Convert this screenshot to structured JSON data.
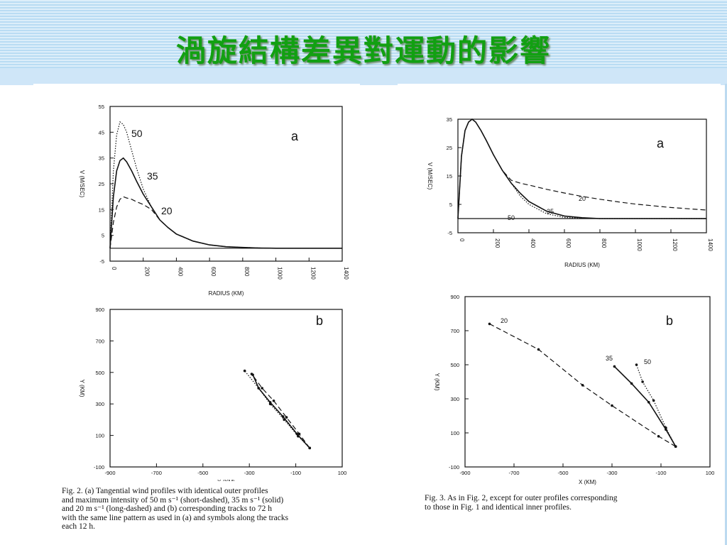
{
  "slide": {
    "title": "渦旋結構差異對運動的影響",
    "accent_color": "#12a012",
    "band_color": "#b9dcf3"
  },
  "captions": {
    "fig2": "Fig. 2. (a) Tangential wind profiles with identical outer profiles\nand maximum intensity of 50 m s⁻¹ (short-dashed), 35 m s⁻¹ (solid)\nand 20 m s⁻¹ (long-dashed) and (b) corresponding tracks to 72 h\nwith the same line pattern as used in (a) and symbols along the tracks\neach 12 h.",
    "fig3": "Fig. 3. As in Fig. 2, except for outer profiles corresponding\nto those in Fig. 1 and identical inner profiles."
  },
  "chart_data": [
    {
      "type": "line",
      "panel": "a",
      "figure": "Fig. 2a",
      "xlabel": "RADIUS (KM)",
      "ylabel": "V (M/SEC)",
      "xlim": [
        0,
        1400
      ],
      "ylim": [
        -5,
        55
      ],
      "xticks": [
        0,
        200,
        400,
        600,
        800,
        1000,
        1200,
        1400
      ],
      "yticks": [
        -5,
        5,
        15,
        25,
        35,
        45,
        55
      ],
      "series": [
        {
          "name": "50",
          "style": "short-dashed",
          "x": [
            0,
            20,
            40,
            60,
            80,
            100,
            130,
            160,
            200,
            250,
            300,
            350,
            400,
            500,
            600,
            700,
            800,
            900,
            1000,
            1200,
            1400
          ],
          "y": [
            0,
            30,
            44,
            49,
            48,
            45,
            38,
            31,
            23,
            16,
            11,
            8,
            5.5,
            2.8,
            1.3,
            0.6,
            0.3,
            0.1,
            0,
            0,
            0
          ]
        },
        {
          "name": "35",
          "style": "solid",
          "x": [
            0,
            20,
            40,
            60,
            80,
            100,
            130,
            160,
            200,
            250,
            300,
            350,
            400,
            500,
            600,
            700,
            800,
            900,
            1000,
            1200,
            1400
          ],
          "y": [
            0,
            20,
            30,
            34,
            35,
            33.5,
            30,
            26,
            21,
            16,
            11,
            8,
            5.5,
            2.8,
            1.3,
            0.6,
            0.3,
            0.1,
            0,
            0,
            0
          ]
        },
        {
          "name": "20",
          "style": "long-dashed",
          "x": [
            0,
            20,
            40,
            60,
            80,
            100,
            130,
            160,
            200,
            250,
            300,
            350,
            400,
            500,
            600,
            700,
            800,
            900,
            1000,
            1200,
            1400
          ],
          "y": [
            0,
            10,
            16,
            19,
            20,
            19.5,
            19,
            18,
            17,
            15,
            11,
            8,
            5.5,
            2.8,
            1.3,
            0.6,
            0.3,
            0.1,
            0,
            0,
            0
          ]
        }
      ],
      "annotations": [
        "50",
        "35",
        "20",
        "a"
      ]
    },
    {
      "type": "line",
      "panel": "b",
      "figure": "Fig. 2b",
      "xlabel": "X (KM)",
      "ylabel": "Y (KM)",
      "xlim": [
        -900,
        100
      ],
      "ylim": [
        -100,
        900
      ],
      "xticks": [
        -900,
        -700,
        -500,
        -300,
        -100,
        100
      ],
      "yticks": [
        -100,
        100,
        300,
        500,
        700,
        900
      ],
      "series": [
        {
          "name": "50",
          "style": "short-dashed",
          "x": [
            -40,
            -90,
            -150,
            -210,
            -260,
            -320
          ],
          "y": [
            20,
            95,
            200,
            300,
            400,
            510
          ]
        },
        {
          "name": "35",
          "style": "solid",
          "x": [
            -40,
            -95,
            -155,
            -210,
            -260,
            -285
          ],
          "y": [
            20,
            110,
            220,
            310,
            400,
            485
          ]
        },
        {
          "name": "20",
          "style": "long-dashed",
          "x": [
            -40,
            -85,
            -140,
            -195,
            -245,
            -290
          ],
          "y": [
            20,
            110,
            215,
            320,
            400,
            490
          ]
        }
      ],
      "annotations": [
        "b"
      ]
    },
    {
      "type": "line",
      "panel": "a",
      "figure": "Fig. 3a",
      "xlabel": "RADIUS (KM)",
      "ylabel": "V (M/SEC)",
      "xlim": [
        0,
        1400
      ],
      "ylim": [
        -5,
        35
      ],
      "xticks": [
        0,
        200,
        400,
        600,
        800,
        1000,
        1200,
        1400
      ],
      "yticks": [
        -5,
        5,
        15,
        25,
        35
      ],
      "series": [
        {
          "name": "35",
          "style": "solid",
          "x": [
            0,
            20,
            40,
            60,
            80,
            100,
            130,
            160,
            200,
            250,
            300,
            350,
            400,
            500,
            600,
            700,
            800,
            900,
            1000,
            1200,
            1400
          ],
          "y": [
            0,
            22,
            31,
            34,
            35,
            34,
            31,
            27.5,
            22.5,
            17,
            12.5,
            9,
            6,
            2.6,
            0.9,
            0.3,
            0,
            0,
            0,
            0,
            0
          ]
        },
        {
          "name": "50",
          "style": "short-dashed",
          "x": [
            0,
            20,
            40,
            60,
            80,
            100,
            130,
            160,
            200,
            250,
            300,
            350,
            400,
            500,
            600,
            700,
            800,
            900,
            1000,
            1200,
            1400
          ],
          "y": [
            0,
            22,
            31,
            34,
            35,
            34,
            31,
            27.5,
            22.5,
            17,
            12.5,
            8,
            5,
            1.7,
            0.4,
            0.1,
            0,
            0,
            0,
            0,
            0
          ]
        },
        {
          "name": "20",
          "style": "long-dashed",
          "x": [
            0,
            20,
            40,
            60,
            80,
            100,
            130,
            160,
            200,
            250,
            300,
            350,
            400,
            500,
            600,
            700,
            800,
            900,
            1000,
            1200,
            1400
          ],
          "y": [
            0,
            22,
            31,
            34,
            35,
            34,
            31,
            27.5,
            22.5,
            17,
            13.5,
            12.5,
            11.8,
            10.3,
            9,
            7.8,
            6.8,
            5.9,
            5.1,
            3.9,
            3
          ]
        }
      ],
      "annotations": [
        "50",
        "35",
        "20",
        "a"
      ]
    },
    {
      "type": "line",
      "panel": "b",
      "figure": "Fig. 3b",
      "xlabel": "X (KM)",
      "ylabel": "Y (KM)",
      "xlim": [
        -900,
        100
      ],
      "ylim": [
        -100,
        900
      ],
      "xticks": [
        -900,
        -700,
        -500,
        -300,
        -100,
        100
      ],
      "yticks": [
        -100,
        100,
        300,
        500,
        700,
        900
      ],
      "series": [
        {
          "name": "20",
          "style": "long-dashed",
          "x": [
            -40,
            -110,
            -300,
            -420,
            -600,
            -800
          ],
          "y": [
            20,
            80,
            260,
            380,
            590,
            740
          ]
        },
        {
          "name": "35",
          "style": "solid",
          "x": [
            -40,
            -80,
            -150,
            -220,
            -290
          ],
          "y": [
            20,
            120,
            280,
            390,
            490
          ]
        },
        {
          "name": "50",
          "style": "short-dashed",
          "x": [
            -40,
            -80,
            -130,
            -175,
            -200
          ],
          "y": [
            20,
            130,
            290,
            400,
            500
          ]
        }
      ],
      "annotations": [
        "20",
        "35",
        "50",
        "b"
      ]
    }
  ]
}
